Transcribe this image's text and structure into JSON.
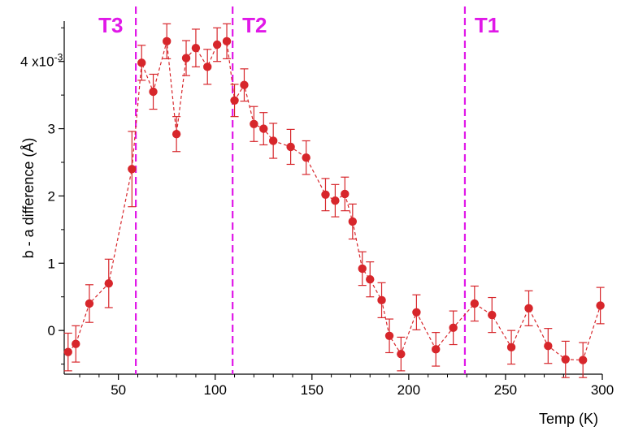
{
  "chart_data": {
    "type": "scatter",
    "xlabel": "Temp (K)",
    "ylabel": "b - a difference (Å)",
    "y_multiplier_label": "x10",
    "y_multiplier_exp": "-3",
    "xlim": [
      22,
      300
    ],
    "ylim": [
      -0.65,
      4.6
    ],
    "x_ticks": [
      50,
      100,
      150,
      200,
      250,
      300
    ],
    "y_ticks": [
      0,
      1,
      2,
      3,
      4
    ],
    "grid": false,
    "series_color": "#d7262b",
    "marker_color": "#e018e8",
    "series": [
      {
        "x": [
          24,
          28,
          35,
          45,
          57,
          62,
          68,
          75,
          80,
          85,
          90,
          96,
          101,
          106,
          110,
          115,
          120,
          125,
          130,
          139,
          147,
          157,
          162,
          167,
          171,
          176,
          180,
          186,
          190,
          196,
          204,
          214,
          223,
          234,
          243,
          253,
          262,
          272,
          281,
          290,
          299
        ],
        "y": [
          -0.32,
          -0.2,
          0.4,
          0.7,
          2.4,
          3.98,
          3.55,
          4.3,
          2.92,
          4.05,
          4.2,
          3.92,
          4.25,
          4.3,
          3.42,
          3.65,
          3.07,
          3.0,
          2.82,
          2.73,
          2.57,
          2.02,
          1.93,
          2.03,
          1.62,
          0.92,
          0.76,
          0.45,
          -0.08,
          -0.35,
          0.27,
          -0.28,
          0.04,
          0.4,
          0.23,
          -0.25,
          0.33,
          -0.23,
          -0.43,
          -0.44,
          0.37
        ],
        "err": [
          0.28,
          0.27,
          0.28,
          0.36,
          0.56,
          0.26,
          0.26,
          0.26,
          0.26,
          0.26,
          0.28,
          0.26,
          0.25,
          0.26,
          0.24,
          0.24,
          0.26,
          0.24,
          0.26,
          0.26,
          0.25,
          0.24,
          0.24,
          0.25,
          0.26,
          0.25,
          0.26,
          0.26,
          0.25,
          0.25,
          0.26,
          0.25,
          0.25,
          0.26,
          0.26,
          0.25,
          0.26,
          0.26,
          0.27,
          0.26,
          0.27
        ]
      }
    ],
    "transitions": [
      {
        "label": "T3",
        "x": 59
      },
      {
        "label": "T2",
        "x": 109
      },
      {
        "label": "T1",
        "x": 229
      }
    ]
  }
}
